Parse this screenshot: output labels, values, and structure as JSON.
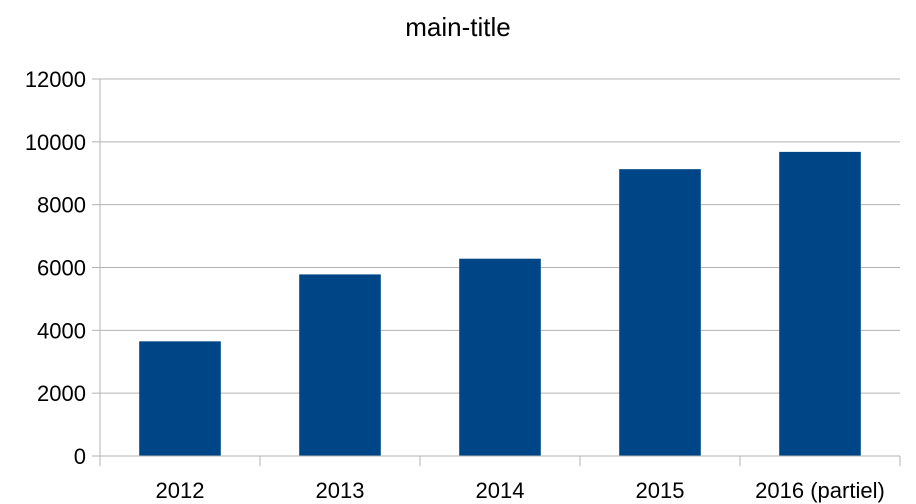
{
  "chart_data": {
    "type": "bar",
    "title": "main-title",
    "categories": [
      "2012",
      "2013",
      "2014",
      "2015",
      "2016 (partiel)"
    ],
    "values": [
      3650,
      5780,
      6280,
      9130,
      9680
    ],
    "ylim": [
      0,
      12000
    ],
    "yticks": [
      0,
      2000,
      4000,
      6000,
      8000,
      10000,
      12000
    ],
    "grid": true,
    "legend": "none",
    "bar_color": "#004586",
    "grid_color": "#b3b3b3",
    "axis_color": "#b3b3b3"
  }
}
